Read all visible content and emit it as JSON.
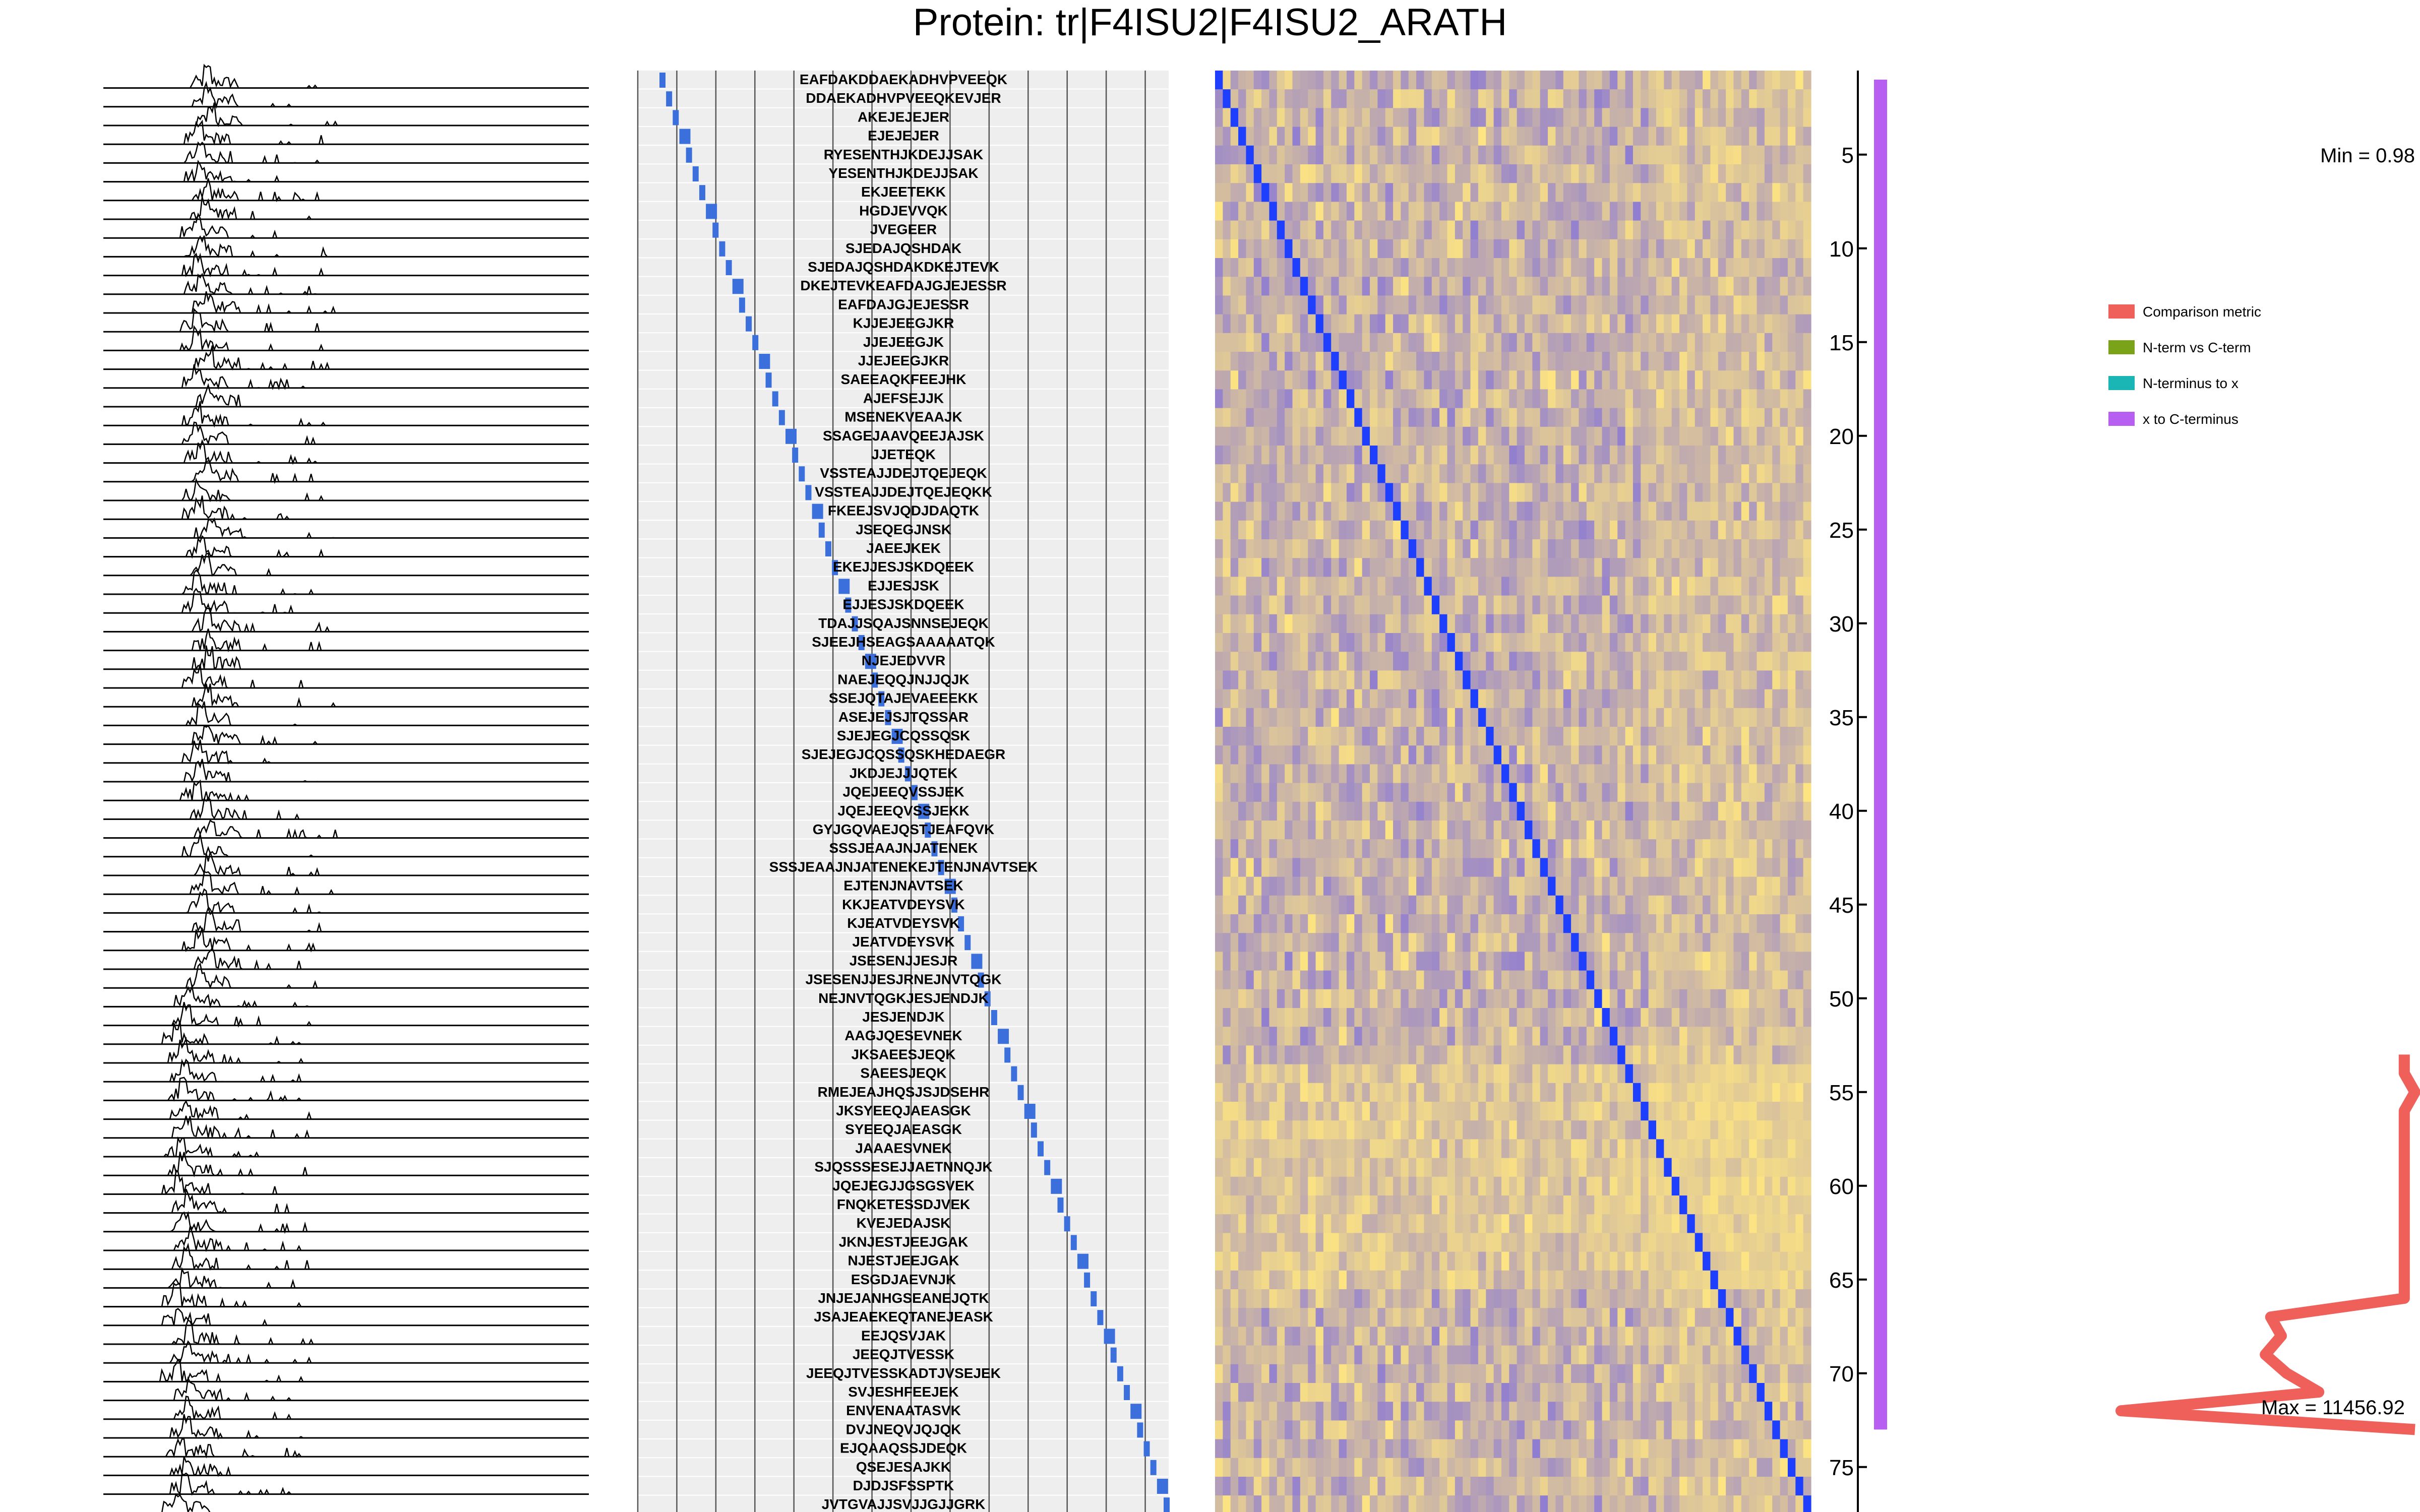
{
  "title": "Protein: tr|F4ISU2|F4ISU2_ARATH",
  "colors": {
    "panel_bg": "#eeeeee",
    "peptide_bar": "#3b6fdc",
    "heat_low": "#ffe680",
    "heat_high": "#7b6ae0",
    "heat_diag": "#1f3fff",
    "comparison_metric": "#f0605a",
    "n_vs_c": "#7aa31a",
    "n_to_x": "#1ab5b5",
    "x_to_c": "#b65ff0"
  },
  "peptides": [
    "EAFDAKDDAEKADHVPVEEQK",
    "DDAEKADHVPVEEQKEVJER",
    "AKEJEJEJER",
    "EJEJEJER",
    "RYESENTHJKDEJJSAK",
    "YESENTHJKDEJJSAK",
    "EKJEETEKK",
    "HGDJEVVQK",
    "JVEGEER",
    "SJEDAJQSHDAK",
    "SJEDAJQSHDAKDKEJTEVK",
    "DKEJTEVKEAFDAJGJEJESSR",
    "EAFDAJGJEJESSR",
    "KJJEJEEGJKR",
    "JJEJEEGJK",
    "JJEJEEGJKR",
    "SAEEAQKFEEJHK",
    "AJEFSEJJK",
    "MSENEKVEAAJK",
    "SSAGEJAAVQEEJAJSK",
    "JJETEQK",
    "VSSTEAJJDEJTQEJEQK",
    "VSSTEAJJDEJTQEJEQKK",
    "FKEEJSVJQDJDAQTK",
    "JSEQEGJNSK",
    "JAEEJKEK",
    "EKEJJESJSKDQEEK",
    "EJJESJSK",
    "EJJESJSKDQEEK",
    "TDAJJSQAJSNNSEJEQK",
    "SJEEJHSEAGSAAAAATQK",
    "NJEJEDVVR",
    "NAEJEQQJNJJQJK",
    "SSEJQTAJEVAEEEKK",
    "ASEJEJSJTQSSAR",
    "SJEJEGJCQSSQSK",
    "SJEJEGJCQSSQSKHEDAEGR",
    "JKDJEJJJQTEK",
    "JQEJEEQVSSJEK",
    "JQEJEEQVSSJEKK",
    "GYJGQVAEJQSTJEAFQVK",
    "SSSJEAAJNJATENEK",
    "SSSJEAAJNJATENEKEJTENJNAVTSEK",
    "EJTENJNAVTSEK",
    "KKJEATVDEYSVK",
    "KJEATVDEYSVK",
    "JEATVDEYSVK",
    "JSESENJJESJR",
    "JSESENJJESJRNEJNVTQGK",
    "NEJNVTQGKJESJENDJK",
    "JESJENDJK",
    "AAGJQESEVNEK",
    "JKSAEESJEQK",
    "SAEESJEQK",
    "RMEJEAJHQSJSJDSEHR",
    "JKSYEEQJAEASGK",
    "SYEEQJAEASGK",
    "JAAAESVNEK",
    "SJQSSSESEJJAETNNQJK",
    "JQEJEGJJGSGSVEK",
    "FNQKETESSDJVEK",
    "KVEJEDAJSK",
    "JKNJESTJEEJGAK",
    "NJESTJEEJGAK",
    "ESGDJAEVNJK",
    "JNJEJANHGSEANEJQTK",
    "JSAJEAEKEQTANEJEASK",
    "EEJQSVJAK",
    "JEEQJTVESSK",
    "JEEQJTVESSKADTJVSEJEK",
    "SVJESHFEEJEK",
    "ENVENAATASVK",
    "DVJNEQVJQJQK",
    "EJQAAQSSJDEQK",
    "QSEJESAJKK",
    "DJDJSFSSPTK",
    "JVTGVAJJSVJJGJJGRK"
  ],
  "axis": {
    "y_ticks": [
      "5",
      "10",
      "15",
      "20",
      "25",
      "30",
      "35",
      "40",
      "45",
      "50",
      "55",
      "60",
      "65",
      "70",
      "75"
    ]
  },
  "chart_data": {
    "type": "line",
    "title": "Protein: tr|F4ISU2|F4ISU2_ARATH",
    "x_orientation": "vertical",
    "ylim": [
      1,
      77
    ],
    "y_ticks": [
      5,
      10,
      15,
      20,
      25,
      30,
      35,
      40,
      45,
      50,
      55,
      60,
      65,
      70,
      75
    ],
    "legend_position": "right",
    "min_label": "Min = 0.98",
    "max_label": "Max = 11456.92",
    "series": [
      {
        "name": "Comparison metric",
        "points": [
          [
            53,
            0.98
          ],
          [
            54,
            0.98
          ],
          [
            55,
            1.0
          ],
          [
            56,
            0.98
          ],
          [
            57,
            0.98
          ],
          [
            58,
            0.98
          ],
          [
            59,
            0.98
          ],
          [
            60,
            0.98
          ],
          [
            61,
            0.98
          ],
          [
            62,
            0.98
          ],
          [
            63,
            0.98
          ],
          [
            64,
            0.98
          ],
          [
            65,
            0.98
          ],
          [
            66,
            0.98
          ],
          [
            67,
            0.73
          ],
          [
            68,
            0.75
          ],
          [
            69,
            0.72
          ],
          [
            70,
            0.76
          ],
          [
            71,
            0.82
          ],
          [
            72,
            0.45
          ],
          [
            73,
            1.0
          ]
        ]
      },
      {
        "name": "N-term vs C-term",
        "points": []
      },
      {
        "name": "N-terminus to x",
        "points": []
      },
      {
        "name": "x to C-terminus",
        "points": [
          [
            1,
            0.0
          ],
          [
            73,
            0.0
          ]
        ]
      }
    ]
  }
}
